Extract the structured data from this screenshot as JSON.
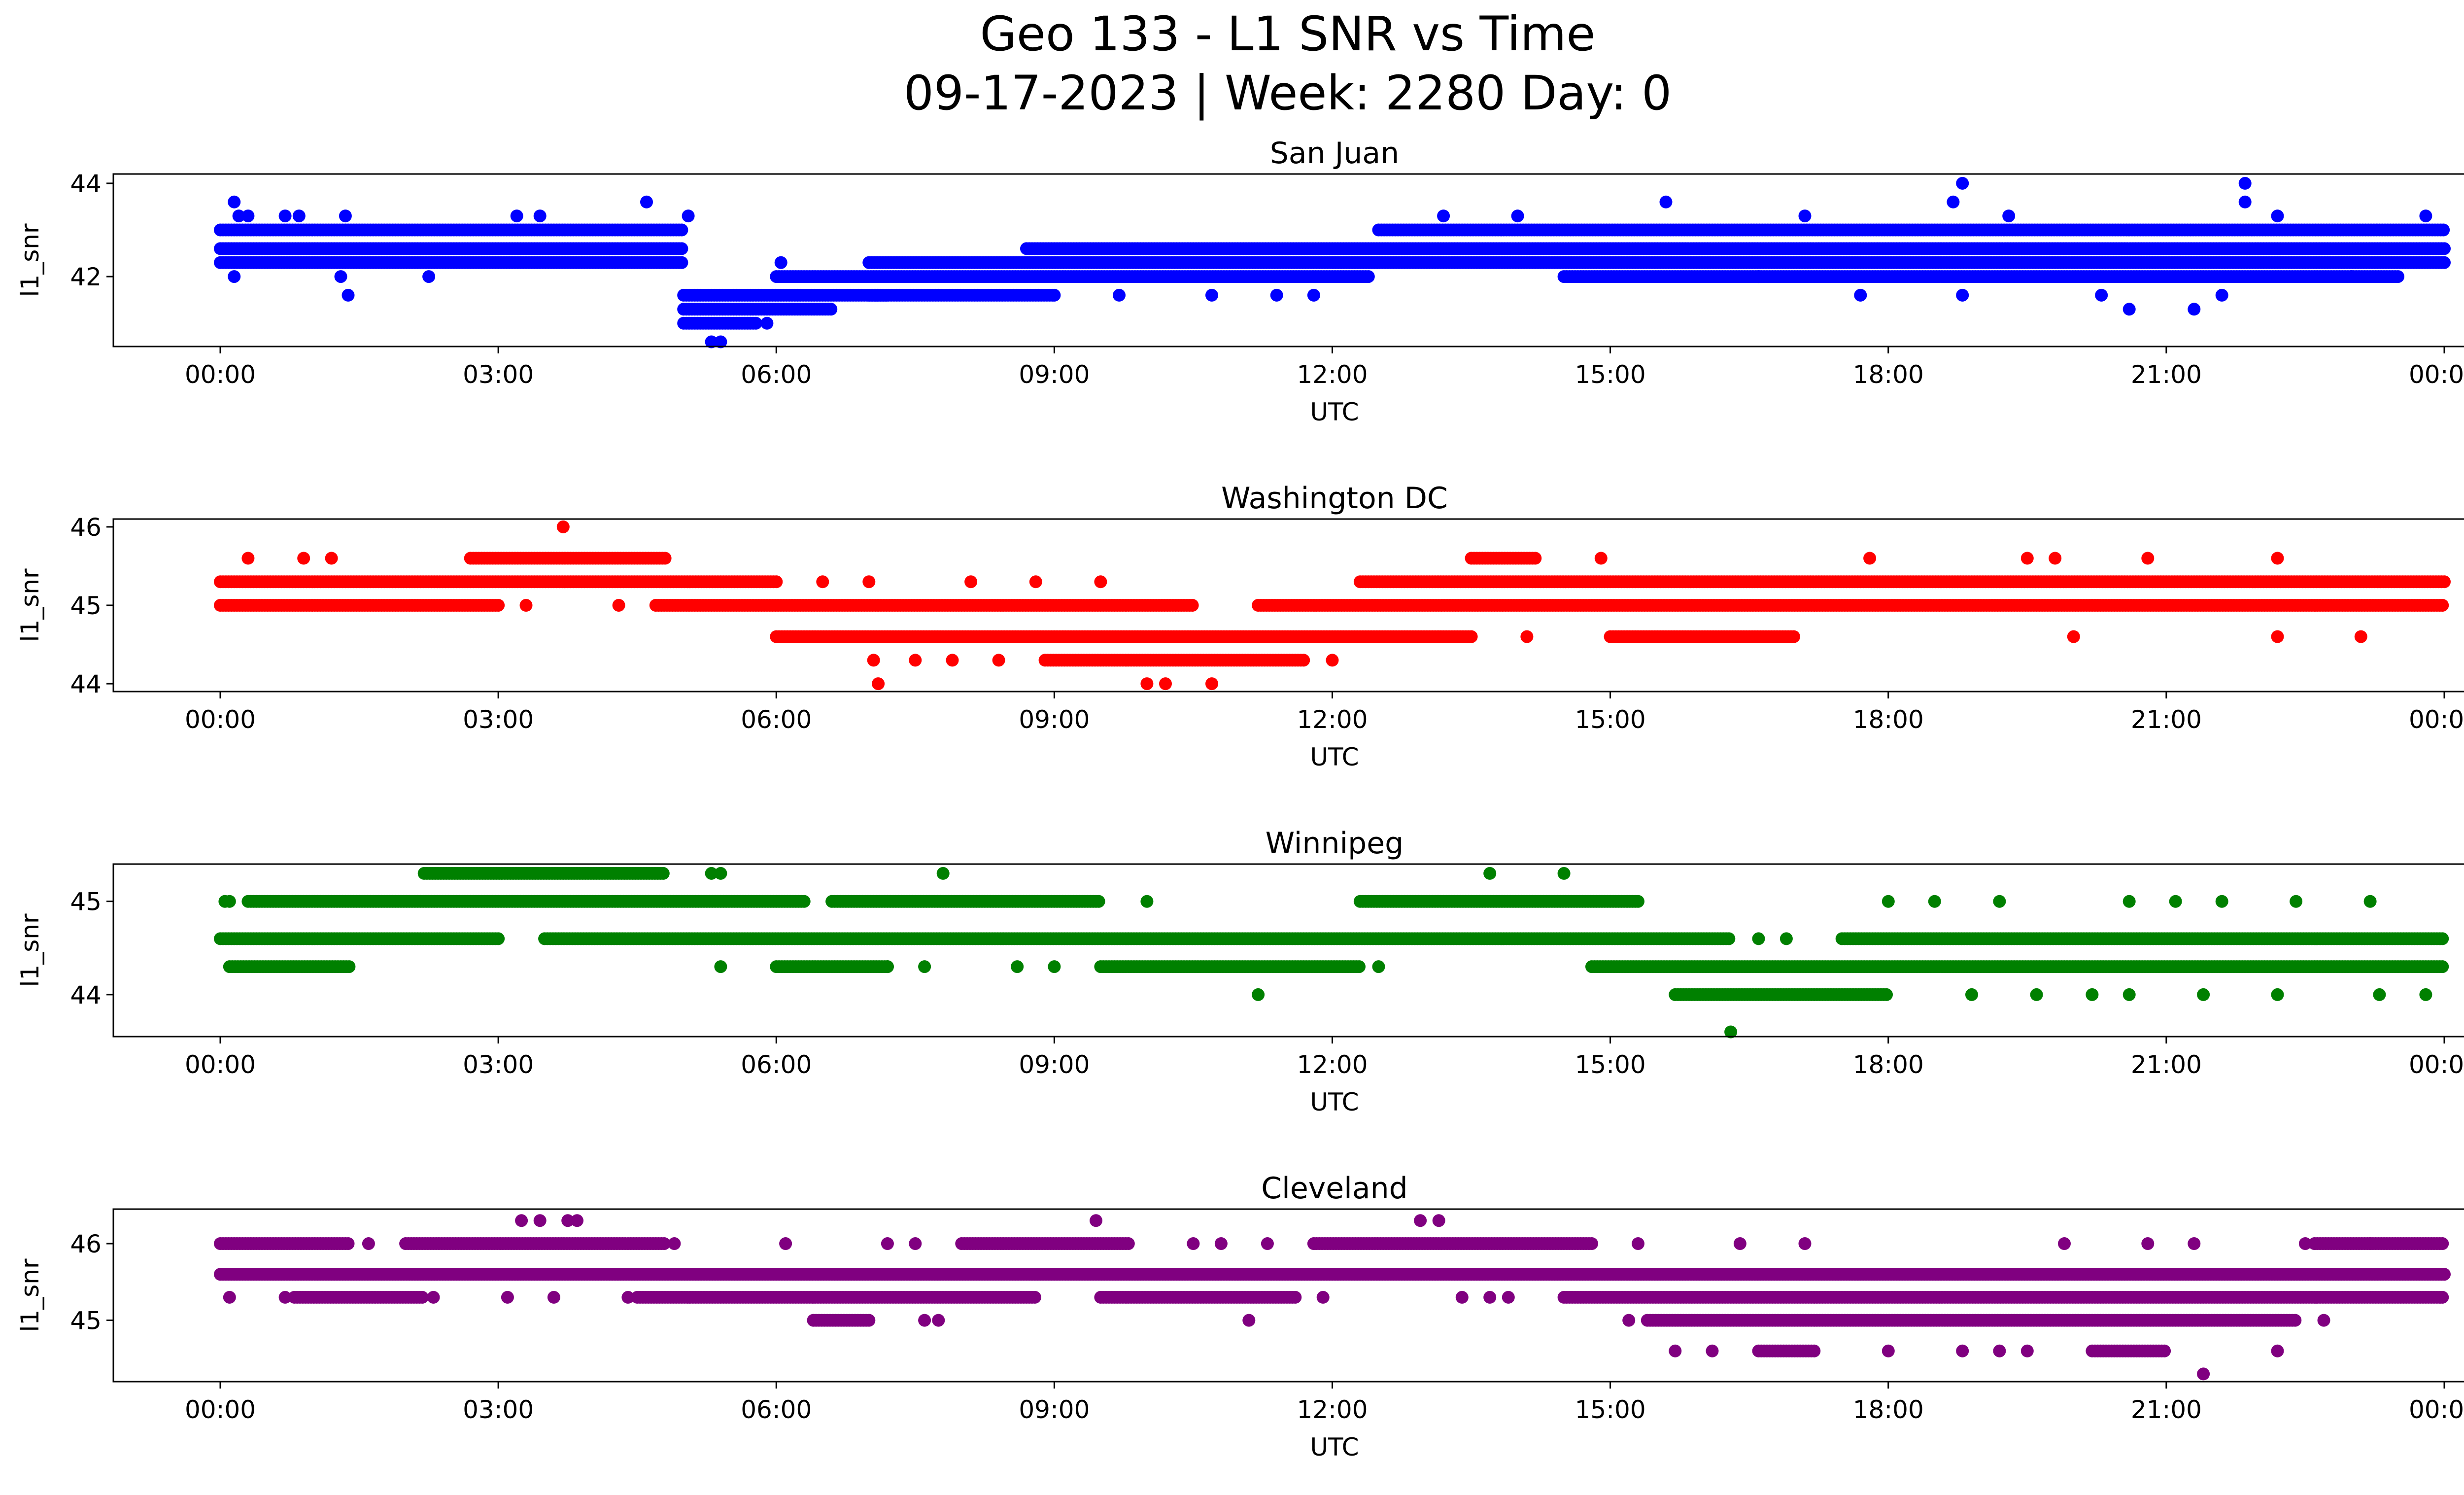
{
  "title_line1": "Geo 133 - L1 SNR vs Time",
  "title_line2": "09-17-2023 | Week: 2280 Day: 0",
  "chart_data": [
    {
      "type": "scatter",
      "title": "San Juan",
      "xlabel": "UTC",
      "ylabel": "l1_snr",
      "color": "#0000ff",
      "x_ticks": [
        "00:00",
        "03:00",
        "06:00",
        "09:00",
        "12:00",
        "15:00",
        "18:00",
        "21:00",
        "00:00"
      ],
      "x_range_hours": [
        0,
        24
      ],
      "y_ticks": [
        42,
        44
      ],
      "ylim": [
        40.5,
        44.2
      ],
      "levels": [
        41.0,
        41.3,
        41.6,
        42.0,
        42.3,
        42.6,
        43.0,
        43.3
      ],
      "band_segments": [
        {
          "level": 42.3,
          "start": 0.0,
          "end": 5.0
        },
        {
          "level": 42.6,
          "start": 0.0,
          "end": 5.0
        },
        {
          "level": 43.0,
          "start": 0.0,
          "end": 5.0
        },
        {
          "level": 41.0,
          "start": 5.0,
          "end": 5.8
        },
        {
          "level": 41.3,
          "start": 5.0,
          "end": 6.6
        },
        {
          "level": 41.6,
          "start": 5.0,
          "end": 7.2
        },
        {
          "level": 42.0,
          "start": 6.0,
          "end": 12.4
        },
        {
          "level": 41.6,
          "start": 7.0,
          "end": 9.0
        },
        {
          "level": 42.3,
          "start": 7.0,
          "end": 12.5
        },
        {
          "level": 42.6,
          "start": 8.7,
          "end": 24.0
        },
        {
          "level": 42.3,
          "start": 12.0,
          "end": 24.0
        },
        {
          "level": 43.0,
          "start": 12.5,
          "end": 24.0
        },
        {
          "level": 42.0,
          "start": 14.5,
          "end": 23.5
        }
      ],
      "scatter_points": [
        [
          0.15,
          43.6
        ],
        [
          0.2,
          43.3
        ],
        [
          0.3,
          43.3
        ],
        [
          0.7,
          43.3
        ],
        [
          0.85,
          43.3
        ],
        [
          1.35,
          43.3
        ],
        [
          0.15,
          42.0
        ],
        [
          1.3,
          42.0
        ],
        [
          1.38,
          41.6
        ],
        [
          2.25,
          42.0
        ],
        [
          3.2,
          43.3
        ],
        [
          3.45,
          43.3
        ],
        [
          4.6,
          43.6
        ],
        [
          5.05,
          43.3
        ],
        [
          5.3,
          40.6
        ],
        [
          5.4,
          40.6
        ],
        [
          5.9,
          41.0
        ],
        [
          6.05,
          42.3
        ],
        [
          9.0,
          41.6
        ],
        [
          9.7,
          41.6
        ],
        [
          10.7,
          41.6
        ],
        [
          11.4,
          41.6
        ],
        [
          11.8,
          41.6
        ],
        [
          13.2,
          43.3
        ],
        [
          14.0,
          43.3
        ],
        [
          15.6,
          43.6
        ],
        [
          16.6,
          42.0
        ],
        [
          17.1,
          43.3
        ],
        [
          17.7,
          41.6
        ],
        [
          18.7,
          43.6
        ],
        [
          18.8,
          44.0
        ],
        [
          18.8,
          41.6
        ],
        [
          19.3,
          43.3
        ],
        [
          20.3,
          41.6
        ],
        [
          20.6,
          41.3
        ],
        [
          21.3,
          41.3
        ],
        [
          21.6,
          41.6
        ],
        [
          21.85,
          44.0
        ],
        [
          21.85,
          43.6
        ],
        [
          22.2,
          43.3
        ],
        [
          23.0,
          42.0
        ],
        [
          23.8,
          43.3
        ]
      ]
    },
    {
      "type": "scatter",
      "title": "Washington DC",
      "xlabel": "UTC",
      "ylabel": "l1_snr",
      "color": "#ff0000",
      "x_ticks": [
        "00:00",
        "03:00",
        "06:00",
        "09:00",
        "12:00",
        "15:00",
        "18:00",
        "21:00",
        "00:00"
      ],
      "x_range_hours": [
        0,
        24
      ],
      "y_ticks": [
        44,
        45,
        46
      ],
      "ylim": [
        43.9,
        46.1
      ],
      "levels": [
        44.0,
        44.3,
        44.6,
        45.0,
        45.3,
        45.6,
        46.0
      ],
      "band_segments": [
        {
          "level": 45.3,
          "start": 0.0,
          "end": 6.0
        },
        {
          "level": 45.0,
          "start": 0.0,
          "end": 3.0
        },
        {
          "level": 45.6,
          "start": 2.7,
          "end": 4.8
        },
        {
          "level": 45.0,
          "start": 4.7,
          "end": 10.5
        },
        {
          "level": 44.6,
          "start": 6.0,
          "end": 13.5
        },
        {
          "level": 44.3,
          "start": 8.9,
          "end": 11.7
        },
        {
          "level": 45.0,
          "start": 11.2,
          "end": 24.0
        },
        {
          "level": 45.3,
          "start": 12.3,
          "end": 24.0
        },
        {
          "level": 45.6,
          "start": 13.5,
          "end": 14.2
        },
        {
          "level": 44.6,
          "start": 15.0,
          "end": 17.0
        }
      ],
      "scatter_points": [
        [
          0.3,
          45.6
        ],
        [
          0.9,
          45.6
        ],
        [
          1.2,
          45.6
        ],
        [
          3.7,
          46.0
        ],
        [
          3.3,
          45.0
        ],
        [
          4.3,
          45.0
        ],
        [
          6.5,
          45.3
        ],
        [
          7.0,
          45.3
        ],
        [
          7.05,
          44.3
        ],
        [
          7.1,
          44.0
        ],
        [
          7.5,
          44.3
        ],
        [
          7.9,
          44.3
        ],
        [
          8.1,
          45.3
        ],
        [
          8.4,
          44.3
        ],
        [
          8.8,
          45.3
        ],
        [
          9.5,
          45.3
        ],
        [
          10.0,
          44.0
        ],
        [
          10.2,
          44.0
        ],
        [
          10.7,
          44.0
        ],
        [
          12.0,
          44.3
        ],
        [
          14.1,
          44.6
        ],
        [
          14.9,
          45.6
        ],
        [
          17.8,
          45.6
        ],
        [
          19.5,
          45.6
        ],
        [
          19.8,
          45.6
        ],
        [
          20.0,
          44.6
        ],
        [
          20.8,
          45.6
        ],
        [
          22.2,
          45.6
        ],
        [
          22.2,
          44.6
        ],
        [
          23.1,
          44.6
        ]
      ]
    },
    {
      "type": "scatter",
      "title": "Winnipeg",
      "xlabel": "UTC",
      "ylabel": "l1_snr",
      "color": "#008000",
      "x_ticks": [
        "00:00",
        "03:00",
        "06:00",
        "09:00",
        "12:00",
        "15:00",
        "18:00",
        "21:00",
        "00:00"
      ],
      "x_range_hours": [
        0,
        24
      ],
      "y_ticks": [
        44,
        45
      ],
      "ylim": [
        43.55,
        45.4
      ],
      "levels": [
        43.6,
        44.0,
        44.3,
        44.6,
        45.0,
        45.3
      ],
      "band_segments": [
        {
          "level": 44.6,
          "start": 0.0,
          "end": 3.0
        },
        {
          "level": 45.0,
          "start": 0.3,
          "end": 6.3
        },
        {
          "level": 44.3,
          "start": 0.1,
          "end": 1.4
        },
        {
          "level": 45.3,
          "start": 2.2,
          "end": 4.8
        },
        {
          "level": 44.6,
          "start": 3.5,
          "end": 16.3
        },
        {
          "level": 45.0,
          "start": 6.6,
          "end": 9.5
        },
        {
          "level": 44.3,
          "start": 6.0,
          "end": 7.2
        },
        {
          "level": 44.3,
          "start": 9.5,
          "end": 12.3
        },
        {
          "level": 45.0,
          "start": 12.3,
          "end": 15.3
        },
        {
          "level": 44.3,
          "start": 14.8,
          "end": 24.0
        },
        {
          "level": 44.0,
          "start": 15.7,
          "end": 18.0
        },
        {
          "level": 44.6,
          "start": 17.5,
          "end": 24.0
        }
      ],
      "scatter_points": [
        [
          0.05,
          45.0
        ],
        [
          0.1,
          45.0
        ],
        [
          5.4,
          44.3
        ],
        [
          5.4,
          45.3
        ],
        [
          5.3,
          45.3
        ],
        [
          7.8,
          45.3
        ],
        [
          7.2,
          44.3
        ],
        [
          7.6,
          44.3
        ],
        [
          8.6,
          44.3
        ],
        [
          9.0,
          44.3
        ],
        [
          10.0,
          45.0
        ],
        [
          11.2,
          44.0
        ],
        [
          12.5,
          44.3
        ],
        [
          13.7,
          45.3
        ],
        [
          14.5,
          45.3
        ],
        [
          16.3,
          43.6
        ],
        [
          16.6,
          44.6
        ],
        [
          16.9,
          44.6
        ],
        [
          18.0,
          45.0
        ],
        [
          18.5,
          45.0
        ],
        [
          19.2,
          45.0
        ],
        [
          18.9,
          44.0
        ],
        [
          19.6,
          44.0
        ],
        [
          20.2,
          44.0
        ],
        [
          20.6,
          45.0
        ],
        [
          21.1,
          45.0
        ],
        [
          21.6,
          45.0
        ],
        [
          20.6,
          44.0
        ],
        [
          21.4,
          44.0
        ],
        [
          22.4,
          45.0
        ],
        [
          22.2,
          44.0
        ],
        [
          23.2,
          45.0
        ],
        [
          23.3,
          44.0
        ],
        [
          23.8,
          44.0
        ]
      ]
    },
    {
      "type": "scatter",
      "title": "Cleveland",
      "xlabel": "UTC",
      "ylabel": "l1_snr",
      "color": "#800080",
      "x_ticks": [
        "00:00",
        "03:00",
        "06:00",
        "09:00",
        "12:00",
        "15:00",
        "18:00",
        "21:00",
        "00:00"
      ],
      "x_range_hours": [
        0,
        24
      ],
      "y_ticks": [
        45,
        46
      ],
      "ylim": [
        44.2,
        46.45
      ],
      "levels": [
        44.3,
        44.6,
        45.0,
        45.3,
        45.6,
        46.0,
        46.3
      ],
      "band_segments": [
        {
          "level": 45.6,
          "start": 0.0,
          "end": 24.0
        },
        {
          "level": 46.0,
          "start": 0.0,
          "end": 1.4
        },
        {
          "level": 45.3,
          "start": 0.8,
          "end": 2.2
        },
        {
          "level": 46.0,
          "start": 2.0,
          "end": 4.8
        },
        {
          "level": 45.3,
          "start": 4.5,
          "end": 8.8
        },
        {
          "level": 46.0,
          "start": 8.0,
          "end": 9.8
        },
        {
          "level": 45.0,
          "start": 6.4,
          "end": 7.0
        },
        {
          "level": 45.3,
          "start": 9.5,
          "end": 11.6
        },
        {
          "level": 46.0,
          "start": 11.8,
          "end": 14.8
        },
        {
          "level": 45.3,
          "start": 14.5,
          "end": 24.0
        },
        {
          "level": 45.0,
          "start": 15.4,
          "end": 22.4
        },
        {
          "level": 44.6,
          "start": 16.6,
          "end": 17.2
        },
        {
          "level": 44.6,
          "start": 20.2,
          "end": 21.0
        },
        {
          "level": 46.0,
          "start": 22.6,
          "end": 24.0
        }
      ],
      "scatter_points": [
        [
          0.1,
          45.3
        ],
        [
          0.7,
          45.3
        ],
        [
          1.6,
          46.0
        ],
        [
          2.3,
          45.3
        ],
        [
          3.1,
          45.3
        ],
        [
          3.25,
          46.3
        ],
        [
          3.45,
          46.3
        ],
        [
          3.75,
          46.3
        ],
        [
          3.85,
          46.3
        ],
        [
          3.6,
          45.3
        ],
        [
          4.4,
          45.3
        ],
        [
          4.9,
          46.0
        ],
        [
          6.1,
          46.0
        ],
        [
          7.2,
          46.0
        ],
        [
          7.5,
          46.0
        ],
        [
          7.6,
          45.0
        ],
        [
          7.75,
          45.0
        ],
        [
          9.45,
          46.3
        ],
        [
          10.5,
          46.0
        ],
        [
          10.8,
          46.0
        ],
        [
          11.1,
          45.0
        ],
        [
          11.3,
          46.0
        ],
        [
          11.9,
          45.3
        ],
        [
          12.95,
          46.3
        ],
        [
          13.15,
          46.3
        ],
        [
          13.4,
          45.3
        ],
        [
          13.7,
          45.3
        ],
        [
          13.9,
          45.3
        ],
        [
          15.2,
          45.0
        ],
        [
          15.3,
          46.0
        ],
        [
          15.7,
          44.6
        ],
        [
          16.1,
          44.6
        ],
        [
          16.4,
          46.0
        ],
        [
          17.1,
          46.0
        ],
        [
          18.0,
          44.6
        ],
        [
          18.8,
          44.6
        ],
        [
          19.2,
          44.6
        ],
        [
          19.5,
          44.6
        ],
        [
          19.9,
          46.0
        ],
        [
          20.8,
          46.0
        ],
        [
          21.3,
          46.0
        ],
        [
          21.4,
          44.3
        ],
        [
          22.2,
          44.6
        ],
        [
          22.5,
          46.0
        ],
        [
          22.7,
          45.0
        ],
        [
          23.2,
          46.0
        ]
      ]
    }
  ]
}
